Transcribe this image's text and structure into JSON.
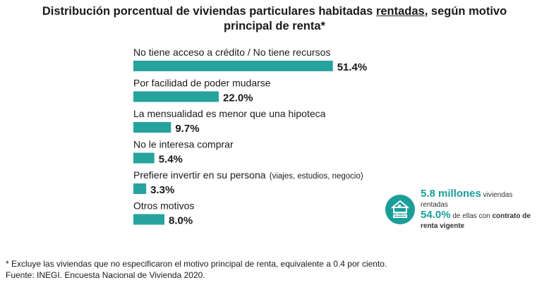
{
  "title": {
    "part1": "Distribución porcentual de viviendas particulares habitadas ",
    "underlined": "rentadas",
    "part2": ", según motivo",
    "line2": "principal de renta*"
  },
  "colors": {
    "bar": "#26a39e",
    "accent": "#1a9e9a"
  },
  "chart_data": {
    "type": "bar",
    "orientation": "horizontal",
    "title": "Distribución porcentual de viviendas particulares habitadas rentadas, según motivo principal de renta*",
    "categories": [
      "No tiene acceso a crédito / No tiene recursos",
      "Por facilidad de poder mudarse",
      "La mensualidad es menor que una hipoteca",
      "No le interesa comprar",
      "Prefiere invertir en su persona",
      "Otros motivos"
    ],
    "category_notes": [
      "",
      "",
      "",
      "",
      "(viajes, estudios, negocio)",
      ""
    ],
    "values": [
      51.4,
      22.0,
      9.7,
      5.4,
      3.3,
      8.0
    ],
    "value_labels": [
      "51.4%",
      "22.0%",
      "9.7%",
      "5.4%",
      "3.3%",
      "8.0%"
    ],
    "unit": "%",
    "grid": false,
    "legend": "none"
  },
  "callout": {
    "icon": "house-for-rent-icon",
    "icon_text": "EN RENTA",
    "total": "5.8 millones",
    "total_suffix": "viviendas",
    "line2": "rentadas",
    "pct": "54.0%",
    "pct_suffix": "de ellas con",
    "pct_bold": "contrato de",
    "line4": "renta vigente"
  },
  "footnote": {
    "note": "* Excluye las viviendas que no especificaron el motivo principal de renta, equivalente a 0.4 por ciento.",
    "source": "Fuente: INEGI. Encuesta Nacional de Vivienda 2020."
  }
}
